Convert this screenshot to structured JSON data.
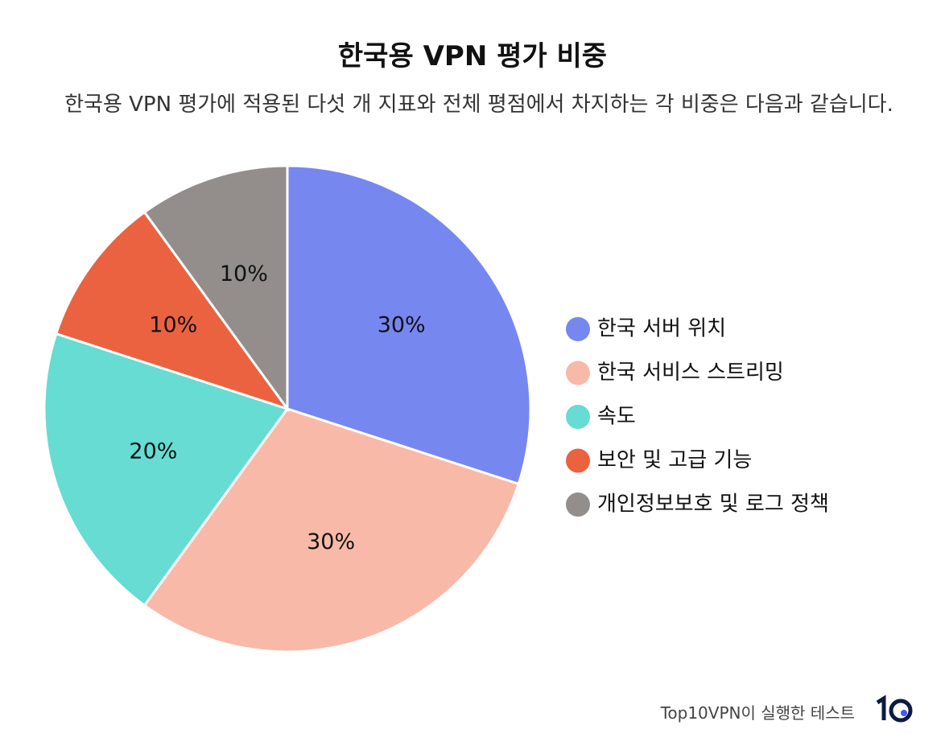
{
  "chart_data": {
    "type": "pie",
    "title": "한국용 VPN 평가 비중",
    "subtitle": "한국용 VPN 평가에 적용된 다섯 개 지표와 전체 평점에서 차지하는 각 비중은 다음과 같습니다.",
    "categories": [
      "한국 서버 위치",
      "한국 서비스 스트리밍",
      "속도",
      "보안 및 고급 기능",
      "개인정보보호 및 로그 정책"
    ],
    "values": [
      30,
      30,
      20,
      10,
      10
    ],
    "value_labels": [
      "30%",
      "30%",
      "20%",
      "10%",
      "10%"
    ],
    "colors": [
      "#7787f0",
      "#f9b9a8",
      "#66dcd3",
      "#ea6240",
      "#938e8c"
    ],
    "legend": "right"
  },
  "footer": "Top10VPN이 실행한 테스트"
}
